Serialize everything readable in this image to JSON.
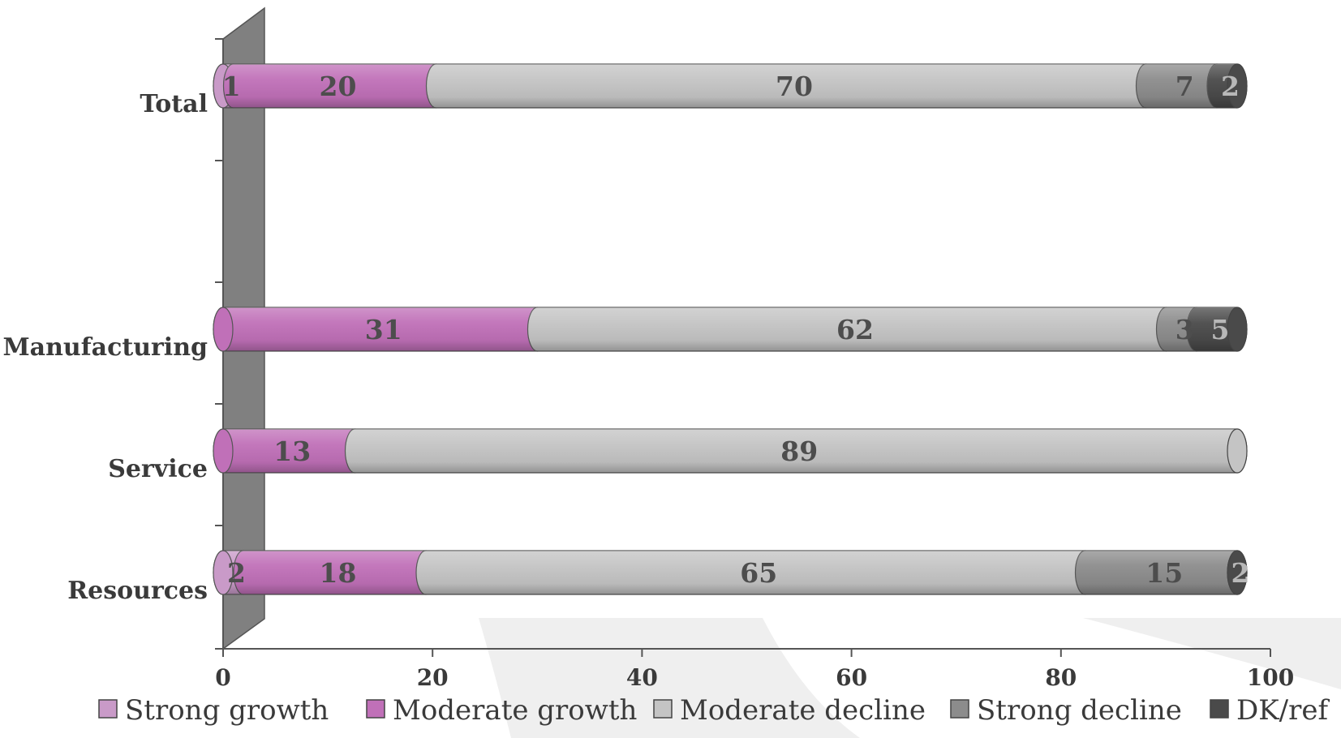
{
  "chart_data": {
    "type": "bar",
    "orientation": "horizontal",
    "stacked": true,
    "style": "3d-cylinder",
    "categories": [
      "Total",
      "Manufacturing",
      "Service",
      "Resources"
    ],
    "series": [
      {
        "name": "Strong growth",
        "color": "#c99ac8",
        "values": [
          1,
          0,
          0,
          2
        ],
        "labels": [
          "1",
          "",
          "",
          "2"
        ]
      },
      {
        "name": "Moderate growth",
        "color": "#c070b8",
        "values": [
          20,
          31,
          13,
          18
        ],
        "labels": [
          "20",
          "31",
          "13",
          "18"
        ]
      },
      {
        "name": "Moderate decline",
        "color": "#c4c4c4",
        "values": [
          70,
          62,
          89,
          65
        ],
        "labels": [
          "70",
          "62",
          "89",
          "65"
        ]
      },
      {
        "name": "Strong decline",
        "color": "#8c8c8c",
        "values": [
          7,
          3,
          0,
          15
        ],
        "labels": [
          "7",
          "3",
          "",
          "15"
        ]
      },
      {
        "name": "DK/ref",
        "color": "#4a4a4a",
        "values": [
          2,
          5,
          0,
          2
        ],
        "labels": [
          "2",
          "5",
          "",
          "2"
        ]
      }
    ],
    "xlim": [
      0,
      100
    ],
    "xticks": [
      "0",
      "20",
      "40",
      "60",
      "80",
      "100"
    ],
    "grid": false,
    "legend_position": "bottom"
  }
}
